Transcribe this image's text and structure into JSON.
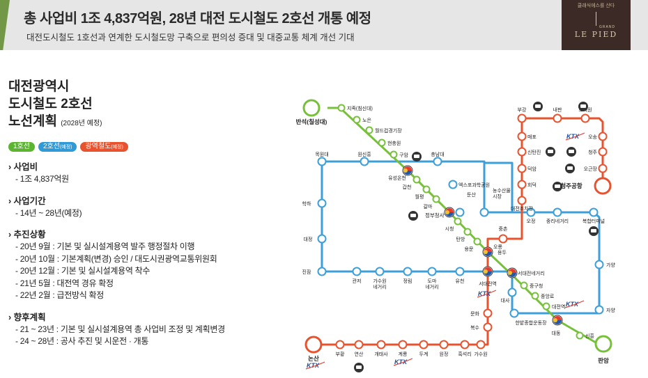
{
  "banner": {
    "title": "총 사업비 1조 4,837억원, 28년 대전 도시철도 2호선 개통 예정",
    "subtitle": "대전도시철도 1호선과 연계한 도시철도망 구축으로 편의성 증대 및 대중교통 체계 개선 기대"
  },
  "logo": {
    "tagline": "클래식에스를 산다",
    "grand": "GRAND",
    "brand": "LE PIED"
  },
  "heading": {
    "line1": "대전광역시",
    "line2": "도시철도 2호선",
    "line3": "노선계획",
    "note": "(2028년 예정)"
  },
  "legend": [
    {
      "label": "1호선",
      "suffix": "",
      "color": "#5cb531"
    },
    {
      "label": "2호선",
      "suffix": "(예정)",
      "color": "#2f9ad6"
    },
    {
      "label": "광역철도",
      "suffix": "(예정)",
      "color": "#e8532f"
    }
  ],
  "sections": [
    {
      "title": "사업비",
      "items": [
        "- 1조 4,837억원"
      ]
    },
    {
      "title": "사업기간",
      "items": [
        "- 14년 ~ 28년(예정)"
      ]
    },
    {
      "title": "추진상황",
      "items": [
        "- 20년 9월 : 기본 및 실시설계용역 발주 행정절차 이행",
        "- 20년 10월 : 기본계획(변경) 승인 / 대도시권광역교통위원회",
        "- 20년 12월 : 기본 및 실시설계용역 착수",
        "- 21년 5월 : 대전역 경유 확정",
        "- 22년 2월 : 급전방식 확정"
      ]
    },
    {
      "title": "향후계획",
      "items": [
        "- 21 ~ 23년 : 기본 및 실시설계용역 총 사업비 조정 및 계획변경",
        "- 24 ~ 28년 : 공사 추진 및 시운전 · 개통"
      ]
    }
  ],
  "colors": {
    "line1": "#76c03a",
    "line2": "#3c9fd8",
    "regional": "#e8532f"
  },
  "map": {
    "terminal_banseok": "반석(칠성대)",
    "terminal_panam": "판암",
    "terminal_nonsan": "논산",
    "terminal_cheongju": "청주공항",
    "ktx": "KTX",
    "line1_stations": [
      "지족(침신대)",
      "노은",
      "월드컵경기장",
      "현충원",
      "구암",
      "유성온천",
      "갑천",
      "월평",
      "갈마",
      "정부청사",
      "시청",
      "탄방",
      "용문",
      "오룡",
      "서대전네거리",
      "중구청",
      "중앙로",
      "대전역",
      "대동",
      "신흥"
    ],
    "line2_stations": [
      "목원대",
      "원신흥",
      "충남대",
      "엑스포과학공원",
      "둔산",
      "농수산물\n시장",
      "오정",
      "중리네거리",
      "복합터미널",
      "가양",
      "자양",
      "한밭종합운동장",
      "대사",
      "학하",
      "대정",
      "진잠",
      "관저",
      "가수원\n네거리",
      "정림",
      "도마\n네거리",
      "유천",
      "서대전역",
      "용두"
    ],
    "regional_stations": [
      "부강",
      "내판",
      "조치원",
      "매포",
      "오송",
      "신탄진",
      "청주",
      "덕암",
      "오근장",
      "회덕",
      "대전조차장",
      "중촌",
      "문화",
      "복수",
      "가수원",
      "흑석리",
      "원정",
      "두계",
      "계룡",
      "개태사",
      "연산",
      "부황"
    ],
    "facility_labels": {
      "city_hall": "정부청사",
      "transfer_stop": "대전조차장"
    }
  }
}
